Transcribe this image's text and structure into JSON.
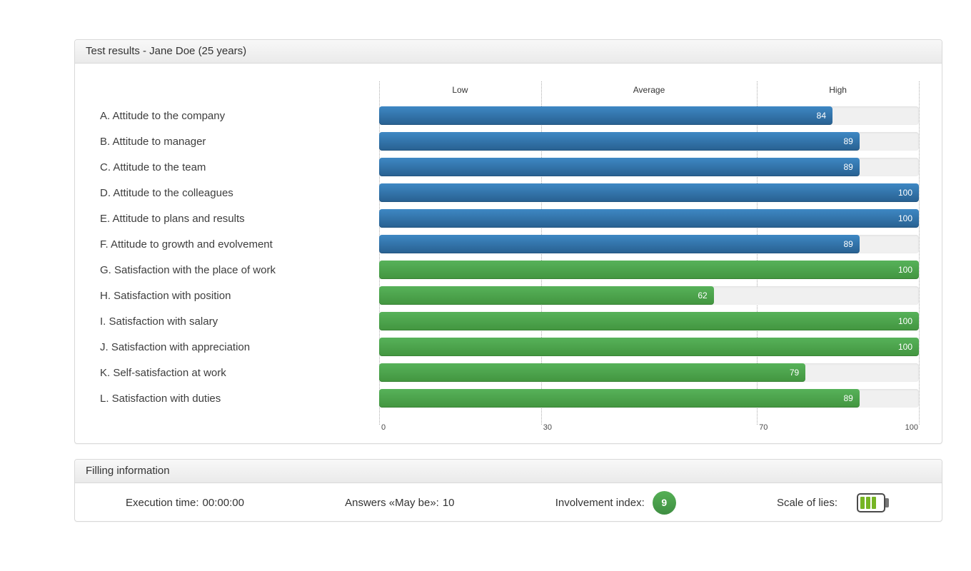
{
  "results_panel": {
    "title": "Test results - Jane Doe (25 years)"
  },
  "chart_data": {
    "type": "bar",
    "orientation": "horizontal",
    "xlim": [
      0,
      100
    ],
    "x_ticks": [
      "0",
      "30",
      "70",
      "100"
    ],
    "zone_labels": {
      "low": "Low",
      "average": "Average",
      "high": "High"
    },
    "zone_boundaries": [
      0,
      30,
      70,
      100
    ],
    "grid": "dotted-vertical",
    "categories": [
      "A. Attitude to the company",
      "B. Attitude to manager",
      "C. Attitude to the team",
      "D. Attitude to the colleagues",
      "E. Attitude to plans and results",
      "F. Attitude to growth and evolvement",
      "G. Satisfaction with the place of work",
      "H. Satisfaction with position",
      "I. Satisfaction with salary",
      "J. Satisfaction with appreciation",
      "K. Self-satisfaction at work",
      "L. Satisfaction with duties"
    ],
    "values": [
      84,
      89,
      89,
      100,
      100,
      89,
      100,
      62,
      100,
      100,
      79,
      89
    ],
    "groups": [
      "blue",
      "blue",
      "blue",
      "blue",
      "blue",
      "blue",
      "green",
      "green",
      "green",
      "green",
      "green",
      "green"
    ],
    "colors": {
      "blue": "#2e6da4",
      "green": "#4a9e4a",
      "track": "#f0f0f0",
      "gridline": "#adadad"
    }
  },
  "filling_panel": {
    "title": "Filling information",
    "execution_time": {
      "label": "Execution time:",
      "value": "00:00:00"
    },
    "answers_maybe": {
      "label": "Answers «May be»:",
      "value": "10"
    },
    "involvement": {
      "label": "Involvement index:",
      "value": "9",
      "badge_color": "#4a9e4a"
    },
    "scale_of_lies": {
      "label": "Scale of lies:",
      "battery_filled": 3,
      "battery_total": 4
    }
  }
}
